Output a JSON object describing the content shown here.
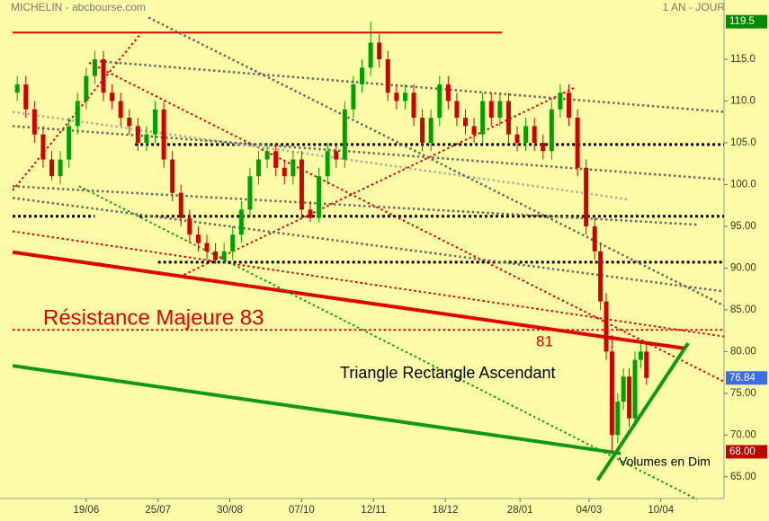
{
  "chart_data": {
    "type": "candlestick",
    "title": "MICHELIN - abcbourse.com",
    "subtitle": "1 AN - JOUR",
    "xlim": [
      0,
      252
    ],
    "ylim": [
      62.4,
      122.1
    ],
    "xticks": [
      {
        "value": 30,
        "label": "19/06"
      },
      {
        "value": 55,
        "label": "25/07"
      },
      {
        "value": 80,
        "label": "30/08"
      },
      {
        "value": 105,
        "label": "07/10"
      },
      {
        "value": 130,
        "label": "12/11"
      },
      {
        "value": 155,
        "label": "18/12"
      },
      {
        "value": 181,
        "label": "28/01"
      },
      {
        "value": 205,
        "label": "04/03"
      },
      {
        "value": 230,
        "label": "10/04"
      }
    ],
    "yticks": [
      {
        "value": 65,
        "label": "65.00"
      },
      {
        "value": 70,
        "label": "70.00"
      },
      {
        "value": 75,
        "label": "75.00"
      },
      {
        "value": 80,
        "label": "80.00"
      },
      {
        "value": 85,
        "label": "85.00"
      },
      {
        "value": 90,
        "label": "90.00"
      },
      {
        "value": 95,
        "label": "95.00"
      },
      {
        "value": 100,
        "label": "100.0"
      },
      {
        "value": 105,
        "label": "105.0"
      },
      {
        "value": 110,
        "label": "110.0"
      },
      {
        "value": 115,
        "label": "115.0"
      }
    ],
    "up_color": "#00a000",
    "down_color": "#d00000",
    "x": [
      6,
      9,
      12,
      15,
      18,
      21,
      24,
      27,
      30,
      33,
      36,
      39,
      42,
      45,
      48,
      51,
      54,
      57,
      60,
      63,
      66,
      69,
      72,
      75,
      78,
      81,
      84,
      87,
      90,
      93,
      96,
      99,
      102,
      105,
      108,
      111,
      114,
      117,
      120,
      123,
      126,
      129,
      132,
      135,
      138,
      141,
      144,
      147,
      150,
      153,
      156,
      159,
      162,
      165,
      168,
      171,
      174,
      177,
      180,
      183,
      186,
      189,
      192,
      195,
      198,
      201,
      204,
      207,
      209,
      211,
      213,
      215,
      217,
      219,
      221,
      223,
      225
    ],
    "open": [
      111,
      112,
      109,
      106,
      103,
      101,
      103,
      107,
      110,
      113,
      115,
      111,
      110,
      108,
      107,
      105,
      106,
      109,
      103,
      99,
      96,
      94,
      93,
      92,
      91,
      92,
      94,
      97,
      101,
      103,
      104,
      102,
      101,
      103,
      97,
      96,
      101,
      104,
      103,
      109,
      112,
      114,
      117,
      115,
      111,
      110,
      111,
      108,
      105,
      108,
      112,
      110,
      108,
      107,
      106,
      110,
      108,
      110,
      106,
      105,
      107,
      105,
      104,
      109,
      111,
      108,
      102,
      95,
      92,
      86,
      80,
      70,
      74,
      77,
      72,
      79,
      80
    ],
    "high": [
      113,
      113,
      110,
      107,
      104,
      104,
      108,
      111,
      114,
      116,
      116,
      112,
      111,
      109,
      108,
      107,
      110,
      110,
      104,
      100,
      97,
      95,
      94,
      93,
      93,
      95,
      98,
      102,
      104,
      105,
      105,
      103,
      104,
      104,
      98,
      102,
      105,
      105,
      110,
      113,
      115,
      119.5,
      118,
      116,
      112,
      112,
      112,
      109,
      109,
      113,
      113,
      111,
      109,
      108,
      111,
      111,
      111,
      111,
      107,
      108,
      108,
      106,
      110,
      112,
      112,
      109,
      103,
      96,
      93,
      87,
      82,
      75,
      78,
      78,
      80,
      81,
      81
    ],
    "low": [
      110,
      108,
      105,
      102,
      100.5,
      100,
      102,
      106,
      109,
      112,
      110,
      109,
      107,
      106,
      104,
      104,
      105,
      102,
      98,
      95,
      93,
      92,
      91,
      90.5,
      90.5,
      91,
      93,
      96,
      100,
      102,
      101,
      100,
      100,
      96,
      95.5,
      95.5,
      100,
      102,
      102,
      108,
      111,
      113,
      114,
      110,
      109,
      109,
      107,
      104,
      104,
      107,
      109,
      107,
      106,
      105,
      105,
      107,
      107,
      105,
      104,
      104,
      104,
      103,
      103,
      108,
      107,
      101,
      94,
      91,
      85,
      79,
      68,
      69,
      73,
      71,
      71,
      78,
      76
    ],
    "close": [
      112,
      109,
      106,
      103,
      101,
      103,
      107,
      110,
      113,
      115,
      111,
      110,
      108,
      107,
      105,
      106,
      109,
      103,
      99,
      96,
      94,
      93,
      92,
      91,
      92,
      94,
      97,
      101,
      103,
      104,
      102,
      101,
      103,
      97,
      96,
      101,
      104,
      103,
      109,
      112,
      114,
      117,
      115,
      111,
      110,
      111,
      108,
      105,
      108,
      112,
      110,
      108,
      107,
      106,
      110,
      108,
      110,
      106,
      105,
      107,
      105,
      104,
      109,
      111,
      108,
      102,
      95,
      92,
      86,
      80,
      70,
      74,
      77,
      72,
      79,
      80,
      76.84
    ],
    "price_flags": [
      {
        "value": 119.5,
        "color": "#008a00"
      },
      {
        "value": 76.84,
        "color": "#3a6ee8"
      },
      {
        "value": 68,
        "label": "68.00",
        "color": "#c00000"
      }
    ],
    "trendlines": [
      {
        "x": [
          4.4,
          174.7
        ],
        "y": [
          118.2,
          118.2
        ],
        "color": "#e00000",
        "style": "solid",
        "width": 2
      },
      {
        "x": [
          4.4,
          238
        ],
        "y": [
          91.9,
          80.4
        ],
        "color": "#e00000",
        "style": "solid",
        "width": 4
      },
      {
        "x": [
          4.4,
          252
        ],
        "y": [
          94.4,
          81.8
        ],
        "color": "#e00000",
        "style": "dotted",
        "width": 2
      },
      {
        "x": [
          4.4,
          252
        ],
        "y": [
          82.6,
          82.6
        ],
        "color": "#e00000",
        "style": "dotted",
        "width": 2
      },
      {
        "x": [
          4.4,
          50
        ],
        "y": [
          99.3,
          118.5
        ],
        "color": "#e00000",
        "style": "dotted",
        "width": 2
      },
      {
        "x": [
          64,
          200
        ],
        "y": [
          89.2,
          111.6
        ],
        "color": "#e00000",
        "style": "dotted",
        "width": 2
      },
      {
        "x": [
          31,
          252
        ],
        "y": [
          114.6,
          76.4
        ],
        "color": "#e00000",
        "style": "dotted",
        "width": 2
      },
      {
        "x": [
          4.4,
          216
        ],
        "y": [
          78.3,
          67.8
        ],
        "color": "#119911",
        "style": "solid",
        "width": 4
      },
      {
        "x": [
          208,
          239.5
        ],
        "y": [
          64.6,
          81
        ],
        "color": "#119911",
        "style": "solid",
        "width": 4
      },
      {
        "x": [
          27.5,
          242.6
        ],
        "y": [
          99.8,
          62.3
        ],
        "color": "#119911",
        "style": "dotted",
        "width": 2
      },
      {
        "x": [
          47,
          252
        ],
        "y": [
          104.8,
          104.8
        ],
        "color": "#000000",
        "style": "dotted",
        "width": 3
      },
      {
        "x": [
          4.4,
          33
        ],
        "y": [
          96.2,
          96.2
        ],
        "color": "#000000",
        "style": "dotted",
        "width": 3
      },
      {
        "x": [
          48.5,
          252
        ],
        "y": [
          96.2,
          96.2
        ],
        "color": "#000000",
        "style": "dotted",
        "width": 3
      },
      {
        "x": [
          55,
          252
        ],
        "y": [
          90.7,
          90.7
        ],
        "color": "#000000",
        "style": "dotted",
        "width": 3
      },
      {
        "x": [
          33,
          252
        ],
        "y": [
          114.8,
          108.7
        ],
        "color": "#666666",
        "style": "dotted",
        "width": 2.5
      },
      {
        "x": [
          4.4,
          219
        ],
        "y": [
          108.7,
          98.2
        ],
        "color": "#aaaaaa",
        "style": "dotted",
        "width": 2.5
      },
      {
        "x": [
          4.4,
          252
        ],
        "y": [
          107,
          100.6
        ],
        "color": "#666666",
        "style": "dotted",
        "width": 2.5
      },
      {
        "x": [
          4.4,
          242.6
        ],
        "y": [
          99.8,
          95.2
        ],
        "color": "#666666",
        "style": "dotted",
        "width": 2.5
      },
      {
        "x": [
          4.4,
          252
        ],
        "y": [
          98.4,
          87.2
        ],
        "color": "#666666",
        "style": "dotted",
        "width": 2.5
      },
      {
        "x": [
          51.7,
          252
        ],
        "y": [
          120,
          85.5
        ],
        "color": "#666666",
        "style": "dotted",
        "width": 2.5
      }
    ],
    "annotations": [
      {
        "text": "Résistance Majeure 83",
        "color": "#e00000"
      },
      {
        "text": "81",
        "color": "#e00000"
      },
      {
        "text": "Triangle Rectangle Ascendant",
        "color": "#000000"
      },
      {
        "text": "Volumes en Dim",
        "color": "#000000"
      }
    ]
  }
}
